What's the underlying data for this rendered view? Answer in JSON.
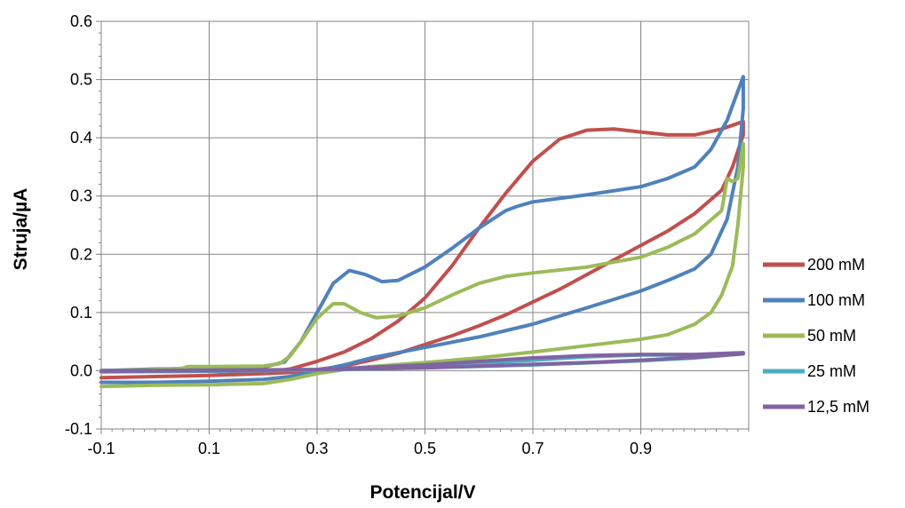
{
  "chart_data": {
    "type": "line",
    "xlabel": "Potencijal/V",
    "ylabel": "Struja/µA",
    "xlim": [
      -0.1,
      1.1
    ],
    "ylim": [
      -0.1,
      0.6
    ],
    "x_ticks": [
      "-0.1",
      "0.1",
      "0.3",
      "0.5",
      "0.7",
      "0.9"
    ],
    "x_tick_values": [
      -0.1,
      0.1,
      0.3,
      0.5,
      0.7,
      0.9
    ],
    "y_ticks": [
      "-0.1",
      "0.0",
      "0.1",
      "0.2",
      "0.3",
      "0.4",
      "0.5",
      "0.6"
    ],
    "y_tick_values": [
      -0.1,
      0.0,
      0.1,
      0.2,
      0.3,
      0.4,
      0.5,
      0.6
    ],
    "grid": true,
    "legend_position": "right",
    "series": [
      {
        "name": "200 mM",
        "color": "#c0504d",
        "points": [
          [
            -0.1,
            -0.012
          ],
          [
            0.0,
            -0.01
          ],
          [
            0.1,
            -0.008
          ],
          [
            0.2,
            -0.003
          ],
          [
            0.25,
            0.003
          ],
          [
            0.3,
            0.016
          ],
          [
            0.35,
            0.032
          ],
          [
            0.4,
            0.055
          ],
          [
            0.45,
            0.085
          ],
          [
            0.5,
            0.125
          ],
          [
            0.55,
            0.18
          ],
          [
            0.6,
            0.245
          ],
          [
            0.65,
            0.305
          ],
          [
            0.7,
            0.36
          ],
          [
            0.75,
            0.398
          ],
          [
            0.8,
            0.413
          ],
          [
            0.85,
            0.415
          ],
          [
            0.9,
            0.41
          ],
          [
            0.95,
            0.405
          ],
          [
            1.0,
            0.405
          ],
          [
            1.05,
            0.415
          ],
          [
            1.09,
            0.428
          ],
          [
            1.09,
            0.405
          ],
          [
            1.07,
            0.35
          ],
          [
            1.05,
            0.31
          ],
          [
            1.0,
            0.27
          ],
          [
            0.95,
            0.24
          ],
          [
            0.9,
            0.215
          ],
          [
            0.85,
            0.19
          ],
          [
            0.8,
            0.165
          ],
          [
            0.75,
            0.14
          ],
          [
            0.7,
            0.118
          ],
          [
            0.65,
            0.096
          ],
          [
            0.6,
            0.077
          ],
          [
            0.55,
            0.06
          ],
          [
            0.5,
            0.045
          ],
          [
            0.45,
            0.03
          ],
          [
            0.4,
            0.018
          ],
          [
            0.35,
            0.008
          ],
          [
            0.3,
            0.002
          ],
          [
            0.25,
            -0.003
          ],
          [
            0.2,
            -0.005
          ],
          [
            0.1,
            -0.008
          ],
          [
            0.0,
            -0.01
          ],
          [
            -0.1,
            -0.012
          ]
        ]
      },
      {
        "name": "100 mM",
        "color": "#4f81bd",
        "points": [
          [
            -0.1,
            0.0
          ],
          [
            0.0,
            0.003
          ],
          [
            0.1,
            0.004
          ],
          [
            0.2,
            0.006
          ],
          [
            0.24,
            0.015
          ],
          [
            0.27,
            0.05
          ],
          [
            0.3,
            0.1
          ],
          [
            0.33,
            0.15
          ],
          [
            0.36,
            0.172
          ],
          [
            0.39,
            0.165
          ],
          [
            0.42,
            0.153
          ],
          [
            0.45,
            0.155
          ],
          [
            0.5,
            0.178
          ],
          [
            0.55,
            0.21
          ],
          [
            0.6,
            0.245
          ],
          [
            0.65,
            0.275
          ],
          [
            0.67,
            0.282
          ],
          [
            0.7,
            0.29
          ],
          [
            0.8,
            0.302
          ],
          [
            0.9,
            0.316
          ],
          [
            0.95,
            0.33
          ],
          [
            1.0,
            0.35
          ],
          [
            1.03,
            0.38
          ],
          [
            1.06,
            0.43
          ],
          [
            1.08,
            0.48
          ],
          [
            1.09,
            0.505
          ],
          [
            1.09,
            0.45
          ],
          [
            1.08,
            0.35
          ],
          [
            1.06,
            0.26
          ],
          [
            1.03,
            0.2
          ],
          [
            1.0,
            0.175
          ],
          [
            0.95,
            0.155
          ],
          [
            0.9,
            0.137
          ],
          [
            0.8,
            0.108
          ],
          [
            0.7,
            0.08
          ],
          [
            0.6,
            0.058
          ],
          [
            0.5,
            0.04
          ],
          [
            0.4,
            0.022
          ],
          [
            0.35,
            0.01
          ],
          [
            0.3,
            0.0
          ],
          [
            0.25,
            -0.01
          ],
          [
            0.2,
            -0.015
          ],
          [
            0.1,
            -0.018
          ],
          [
            0.0,
            -0.02
          ],
          [
            -0.1,
            -0.02
          ]
        ]
      },
      {
        "name": "50 mM",
        "color": "#9bbb59",
        "points": [
          [
            -0.1,
            0.0
          ],
          [
            0.0,
            0.002
          ],
          [
            0.05,
            0.004
          ],
          [
            0.06,
            0.007
          ],
          [
            0.1,
            0.007
          ],
          [
            0.2,
            0.008
          ],
          [
            0.23,
            0.012
          ],
          [
            0.25,
            0.025
          ],
          [
            0.27,
            0.05
          ],
          [
            0.3,
            0.09
          ],
          [
            0.33,
            0.115
          ],
          [
            0.35,
            0.115
          ],
          [
            0.38,
            0.1
          ],
          [
            0.41,
            0.091
          ],
          [
            0.45,
            0.094
          ],
          [
            0.5,
            0.108
          ],
          [
            0.55,
            0.13
          ],
          [
            0.6,
            0.15
          ],
          [
            0.65,
            0.162
          ],
          [
            0.7,
            0.168
          ],
          [
            0.8,
            0.178
          ],
          [
            0.9,
            0.195
          ],
          [
            0.95,
            0.212
          ],
          [
            1.0,
            0.235
          ],
          [
            1.05,
            0.275
          ],
          [
            1.06,
            0.33
          ],
          [
            1.07,
            0.325
          ],
          [
            1.08,
            0.33
          ],
          [
            1.09,
            0.39
          ],
          [
            1.09,
            0.35
          ],
          [
            1.08,
            0.25
          ],
          [
            1.07,
            0.18
          ],
          [
            1.05,
            0.13
          ],
          [
            1.03,
            0.1
          ],
          [
            1.0,
            0.08
          ],
          [
            0.95,
            0.062
          ],
          [
            0.9,
            0.054
          ],
          [
            0.8,
            0.043
          ],
          [
            0.7,
            0.032
          ],
          [
            0.6,
            0.022
          ],
          [
            0.5,
            0.014
          ],
          [
            0.4,
            0.007
          ],
          [
            0.35,
            0.002
          ],
          [
            0.3,
            -0.005
          ],
          [
            0.25,
            -0.015
          ],
          [
            0.2,
            -0.022
          ],
          [
            0.1,
            -0.024
          ],
          [
            0.0,
            -0.025
          ],
          [
            -0.1,
            -0.027
          ]
        ]
      },
      {
        "name": "25 mM",
        "color": "#4bacc6",
        "points": [
          [
            -0.1,
            0.0
          ],
          [
            0.1,
            0.0
          ],
          [
            0.3,
            0.002
          ],
          [
            0.5,
            0.008
          ],
          [
            0.7,
            0.018
          ],
          [
            0.8,
            0.024
          ],
          [
            0.9,
            0.027
          ],
          [
            1.0,
            0.027
          ],
          [
            1.09,
            0.03
          ],
          [
            1.09,
            0.029
          ],
          [
            1.0,
            0.022
          ],
          [
            0.9,
            0.017
          ],
          [
            0.7,
            0.01
          ],
          [
            0.5,
            0.005
          ],
          [
            0.3,
            0.001
          ],
          [
            0.1,
            -0.001
          ],
          [
            -0.1,
            -0.002
          ]
        ]
      },
      {
        "name": "12,5 mM",
        "color": "#8064a2",
        "points": [
          [
            -0.1,
            0.0
          ],
          [
            0.1,
            0.001
          ],
          [
            0.3,
            0.002
          ],
          [
            0.5,
            0.01
          ],
          [
            0.6,
            0.016
          ],
          [
            0.7,
            0.022
          ],
          [
            0.8,
            0.026
          ],
          [
            0.9,
            0.028
          ],
          [
            1.0,
            0.028
          ],
          [
            1.09,
            0.031
          ],
          [
            1.09,
            0.029
          ],
          [
            1.0,
            0.023
          ],
          [
            0.9,
            0.018
          ],
          [
            0.8,
            0.014
          ],
          [
            0.7,
            0.011
          ],
          [
            0.6,
            0.008
          ],
          [
            0.5,
            0.005
          ],
          [
            0.3,
            0.002
          ],
          [
            0.1,
            0.0
          ],
          [
            -0.1,
            -0.001
          ]
        ]
      }
    ]
  }
}
